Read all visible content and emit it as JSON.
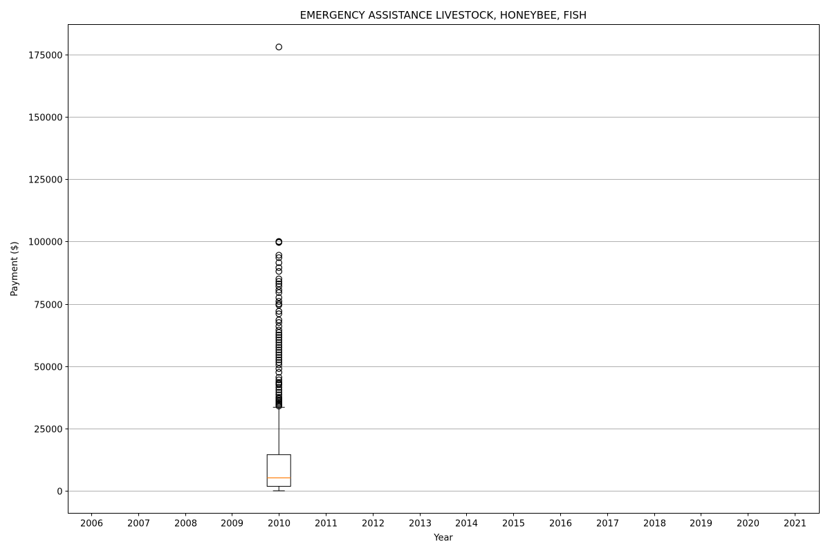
{
  "chart_data": {
    "type": "box",
    "title": "EMERGENCY ASSISTANCE LIVESTOCK, HONEYBEE, FISH",
    "xlabel": "Year",
    "ylabel": "Payment ($)",
    "categories": [
      "2006",
      "2007",
      "2008",
      "2009",
      "2010",
      "2011",
      "2012",
      "2013",
      "2014",
      "2015",
      "2016",
      "2017",
      "2018",
      "2019",
      "2020",
      "2021"
    ],
    "yticks": [
      0,
      25000,
      50000,
      75000,
      100000,
      125000,
      150000,
      175000
    ],
    "ylim": [
      -9000,
      187000
    ],
    "grid": "y",
    "boxes": [
      {
        "category": "2010",
        "whisker_low": 0,
        "q1": 1800,
        "median": 5200,
        "q3": 14500,
        "whisker_high": 33500,
        "outliers": [
          178000,
          100000,
          99800,
          99600,
          94500,
          93500,
          91500,
          89500,
          88000,
          85000,
          84000,
          83000,
          82000,
          80500,
          79500,
          77500,
          76000,
          75000,
          74500,
          72000,
          71000,
          68500,
          67500,
          66000,
          64500,
          63500,
          62500,
          61500,
          60500,
          59500,
          58500,
          57500,
          56500,
          55500,
          54500,
          53500,
          52500,
          51500,
          50500,
          49000,
          47500,
          45500,
          44500,
          43500,
          43000,
          42500,
          41500,
          40500,
          39500,
          38500,
          37500,
          37000,
          36500,
          36000,
          35500,
          35000,
          34500,
          34000
        ]
      }
    ],
    "colors": {
      "box": "#000000",
      "median": "#ff7f0e",
      "grid": "#b0b0b0"
    }
  }
}
